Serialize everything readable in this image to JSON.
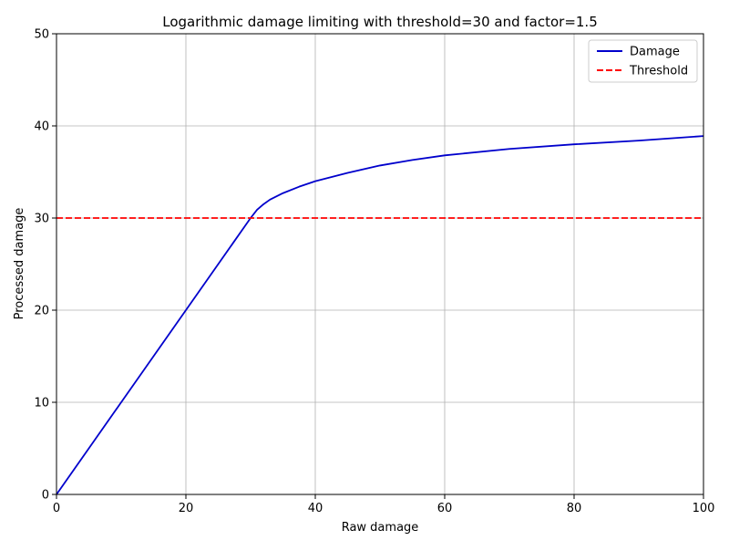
{
  "chart_data": {
    "type": "line",
    "title": "Logarithmic damage limiting with threshold=30 and factor=1.5",
    "xlabel": "Raw damage",
    "ylabel": "Processed damage",
    "xlim": [
      0,
      100
    ],
    "ylim": [
      0,
      50
    ],
    "xticks": [
      0,
      20,
      40,
      60,
      80,
      100
    ],
    "yticks": [
      0,
      10,
      20,
      30,
      40,
      50
    ],
    "grid": true,
    "legend_position": "top-right",
    "series": [
      {
        "name": "Damage",
        "color": "#0000cc",
        "style": "solid",
        "x": [
          0,
          5,
          10,
          15,
          20,
          25,
          30,
          31,
          32,
          33,
          35,
          37.5,
          40,
          45,
          50,
          55,
          60,
          70,
          80,
          90,
          100
        ],
        "y": [
          0,
          5,
          10,
          15,
          20,
          25,
          30,
          30.9,
          31.5,
          32.0,
          32.7,
          33.4,
          34.0,
          34.9,
          35.7,
          36.3,
          36.8,
          37.5,
          38.0,
          38.4,
          38.9
        ]
      },
      {
        "name": "Threshold",
        "color": "#ff0000",
        "style": "dashed",
        "x": [
          0,
          100
        ],
        "y": [
          30,
          30
        ]
      }
    ]
  }
}
